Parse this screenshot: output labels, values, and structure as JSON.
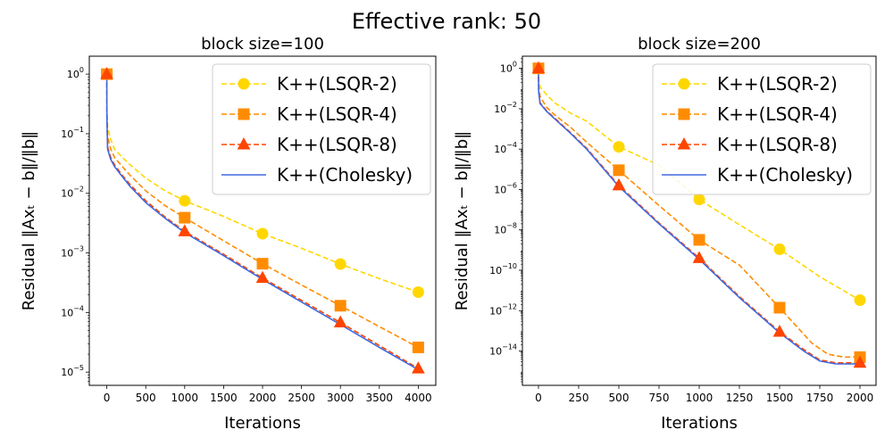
{
  "figure": {
    "suptitle": "Effective rank: 50"
  },
  "chart_data": [
    {
      "type": "line",
      "title": "block size=100",
      "xlabel": "Iterations",
      "ylabel": "Residual ‖Axₜ − b‖/‖b‖",
      "yscale": "log",
      "xlim": [
        -225,
        4225
      ],
      "ylim": [
        6e-06,
        2
      ],
      "xticks": [
        0,
        500,
        1000,
        1500,
        2000,
        2500,
        3000,
        3500,
        4000
      ],
      "xtick_labels": [
        "0",
        "500",
        "1000",
        "1500",
        "2000",
        "2500",
        "3000",
        "3500",
        "4000"
      ],
      "yticks": [
        1e-05,
        0.0001,
        0.001,
        0.01,
        0.1,
        1
      ],
      "ytick_labels": [
        {
          "base": "10",
          "exp": "−5"
        },
        {
          "base": "10",
          "exp": "−4"
        },
        {
          "base": "10",
          "exp": "−3"
        },
        {
          "base": "10",
          "exp": "−2"
        },
        {
          "base": "10",
          "exp": "−1"
        },
        {
          "base": "10",
          "exp": "0"
        }
      ],
      "legend_loc": "upper right",
      "series": [
        {
          "name": "K++(LSQR-2)",
          "color": "#FFD700",
          "marker": "circle",
          "dashed": true,
          "x": [
            0,
            1,
            10,
            50,
            100,
            200,
            300,
            500,
            750,
            1000,
            1500,
            2000,
            2500,
            3000,
            3500,
            4000
          ],
          "y": [
            1.0,
            0.3,
            0.13,
            0.08,
            0.055,
            0.04,
            0.03,
            0.018,
            0.011,
            0.0075,
            0.0041,
            0.0021,
            0.0012,
            0.00065,
            0.00037,
            0.00022
          ]
        },
        {
          "name": "K++(LSQR-4)",
          "color": "#FF8C00",
          "marker": "square",
          "dashed": true,
          "x": [
            0,
            1,
            10,
            50,
            100,
            200,
            300,
            500,
            750,
            1000,
            1500,
            2000,
            2500,
            3000,
            3500,
            4000
          ],
          "y": [
            1.0,
            0.25,
            0.09,
            0.055,
            0.04,
            0.028,
            0.02,
            0.011,
            0.0062,
            0.0039,
            0.0016,
            0.00066,
            0.00029,
            0.00013,
            5.8e-05,
            2.6e-05
          ]
        },
        {
          "name": "K++(LSQR-8)",
          "color": "#FF4500",
          "marker": "triangle",
          "dashed": true,
          "x": [
            0,
            1,
            10,
            50,
            100,
            200,
            300,
            500,
            750,
            1000,
            1500,
            2000,
            2500,
            3000,
            3500,
            4000
          ],
          "y": [
            1.0,
            0.2,
            0.06,
            0.04,
            0.03,
            0.02,
            0.014,
            0.0075,
            0.004,
            0.0023,
            0.00095,
            0.00038,
            0.00016,
            6.8e-05,
            2.8e-05,
            1.15e-05
          ]
        },
        {
          "name": "K++(Cholesky)",
          "color": "#4169E1",
          "marker": "none",
          "dashed": false,
          "x": [
            0,
            1,
            10,
            50,
            100,
            200,
            300,
            500,
            750,
            1000,
            1500,
            2000,
            2500,
            3000,
            3500,
            4000
          ],
          "y": [
            1.0,
            0.18,
            0.055,
            0.037,
            0.028,
            0.019,
            0.013,
            0.007,
            0.0038,
            0.0022,
            0.0009,
            0.00036,
            0.00015,
            6.3e-05,
            2.6e-05,
            1.1e-05
          ]
        }
      ]
    },
    {
      "type": "line",
      "title": "block size=200",
      "xlabel": "Iterations",
      "ylabel": "Residual ‖Axₜ − b‖/‖b‖",
      "yscale": "log",
      "xlim": [
        -100,
        2100
      ],
      "ylim": [
        2e-16,
        4
      ],
      "xticks": [
        0,
        250,
        500,
        750,
        1000,
        1250,
        1500,
        1750,
        2000
      ],
      "xtick_labels": [
        "0",
        "250",
        "500",
        "750",
        "1000",
        "1250",
        "1500",
        "1750",
        "2000"
      ],
      "yticks": [
        1e-14,
        1e-12,
        1e-10,
        1e-08,
        1e-06,
        0.0001,
        0.01,
        1
      ],
      "ytick_labels": [
        {
          "base": "10",
          "exp": "−14"
        },
        {
          "base": "10",
          "exp": "−12"
        },
        {
          "base": "10",
          "exp": "−10"
        },
        {
          "base": "10",
          "exp": "−8"
        },
        {
          "base": "10",
          "exp": "−6"
        },
        {
          "base": "10",
          "exp": "−4"
        },
        {
          "base": "10",
          "exp": "−2"
        },
        {
          "base": "10",
          "exp": "0"
        }
      ],
      "legend_loc": "upper right",
      "series": [
        {
          "name": "K++(LSQR-2)",
          "color": "#FFD700",
          "marker": "circle",
          "dashed": true,
          "x": [
            0,
            1,
            10,
            50,
            100,
            200,
            300,
            500,
            750,
            1000,
            1250,
            1500,
            1750,
            2000
          ],
          "y": [
            1.0,
            0.3,
            0.12,
            0.05,
            0.02,
            0.006,
            0.0024,
            0.00013,
            1.6e-05,
            3.2e-07,
            1.8e-08,
            1.1e-09,
            4.8e-11,
            3.3e-12
          ]
        },
        {
          "name": "K++(LSQR-4)",
          "color": "#FF8C00",
          "marker": "square",
          "dashed": true,
          "x": [
            0,
            1,
            10,
            50,
            100,
            200,
            300,
            500,
            750,
            1000,
            1250,
            1500,
            1700,
            1800,
            1900,
            2000
          ],
          "y": [
            1.0,
            0.15,
            0.04,
            0.012,
            0.005,
            0.0012,
            0.00022,
            9e-06,
            1.6e-07,
            3.2e-09,
            1.8e-10,
            1.4e-12,
            2.5e-14,
            7e-15,
            5e-15,
            5e-15
          ]
        },
        {
          "name": "K++(LSQR-8)",
          "color": "#FF4500",
          "marker": "triangle",
          "dashed": true,
          "x": [
            0,
            1,
            10,
            50,
            100,
            200,
            300,
            500,
            750,
            1000,
            1250,
            1500,
            1650,
            1750,
            1850,
            2000
          ],
          "y": [
            1.0,
            0.08,
            0.02,
            0.008,
            0.0035,
            0.00065,
            0.00011,
            1.6e-06,
            2.2e-08,
            4e-10,
            5e-12,
            9e-14,
            1.2e-14,
            3.6e-15,
            2.6e-15,
            2.6e-15
          ]
        },
        {
          "name": "K++(Cholesky)",
          "color": "#4169E1",
          "marker": "none",
          "dashed": false,
          "x": [
            0,
            1,
            10,
            50,
            100,
            200,
            300,
            500,
            750,
            1000,
            1250,
            1500,
            1650,
            1750,
            1850,
            2000
          ],
          "y": [
            1.0,
            0.07,
            0.018,
            0.0075,
            0.0032,
            0.0006,
            0.0001,
            1.4e-06,
            2e-08,
            3.5e-10,
            4.4e-12,
            8e-14,
            1e-14,
            3.2e-15,
            2.3e-15,
            2.3e-15
          ]
        }
      ]
    }
  ]
}
